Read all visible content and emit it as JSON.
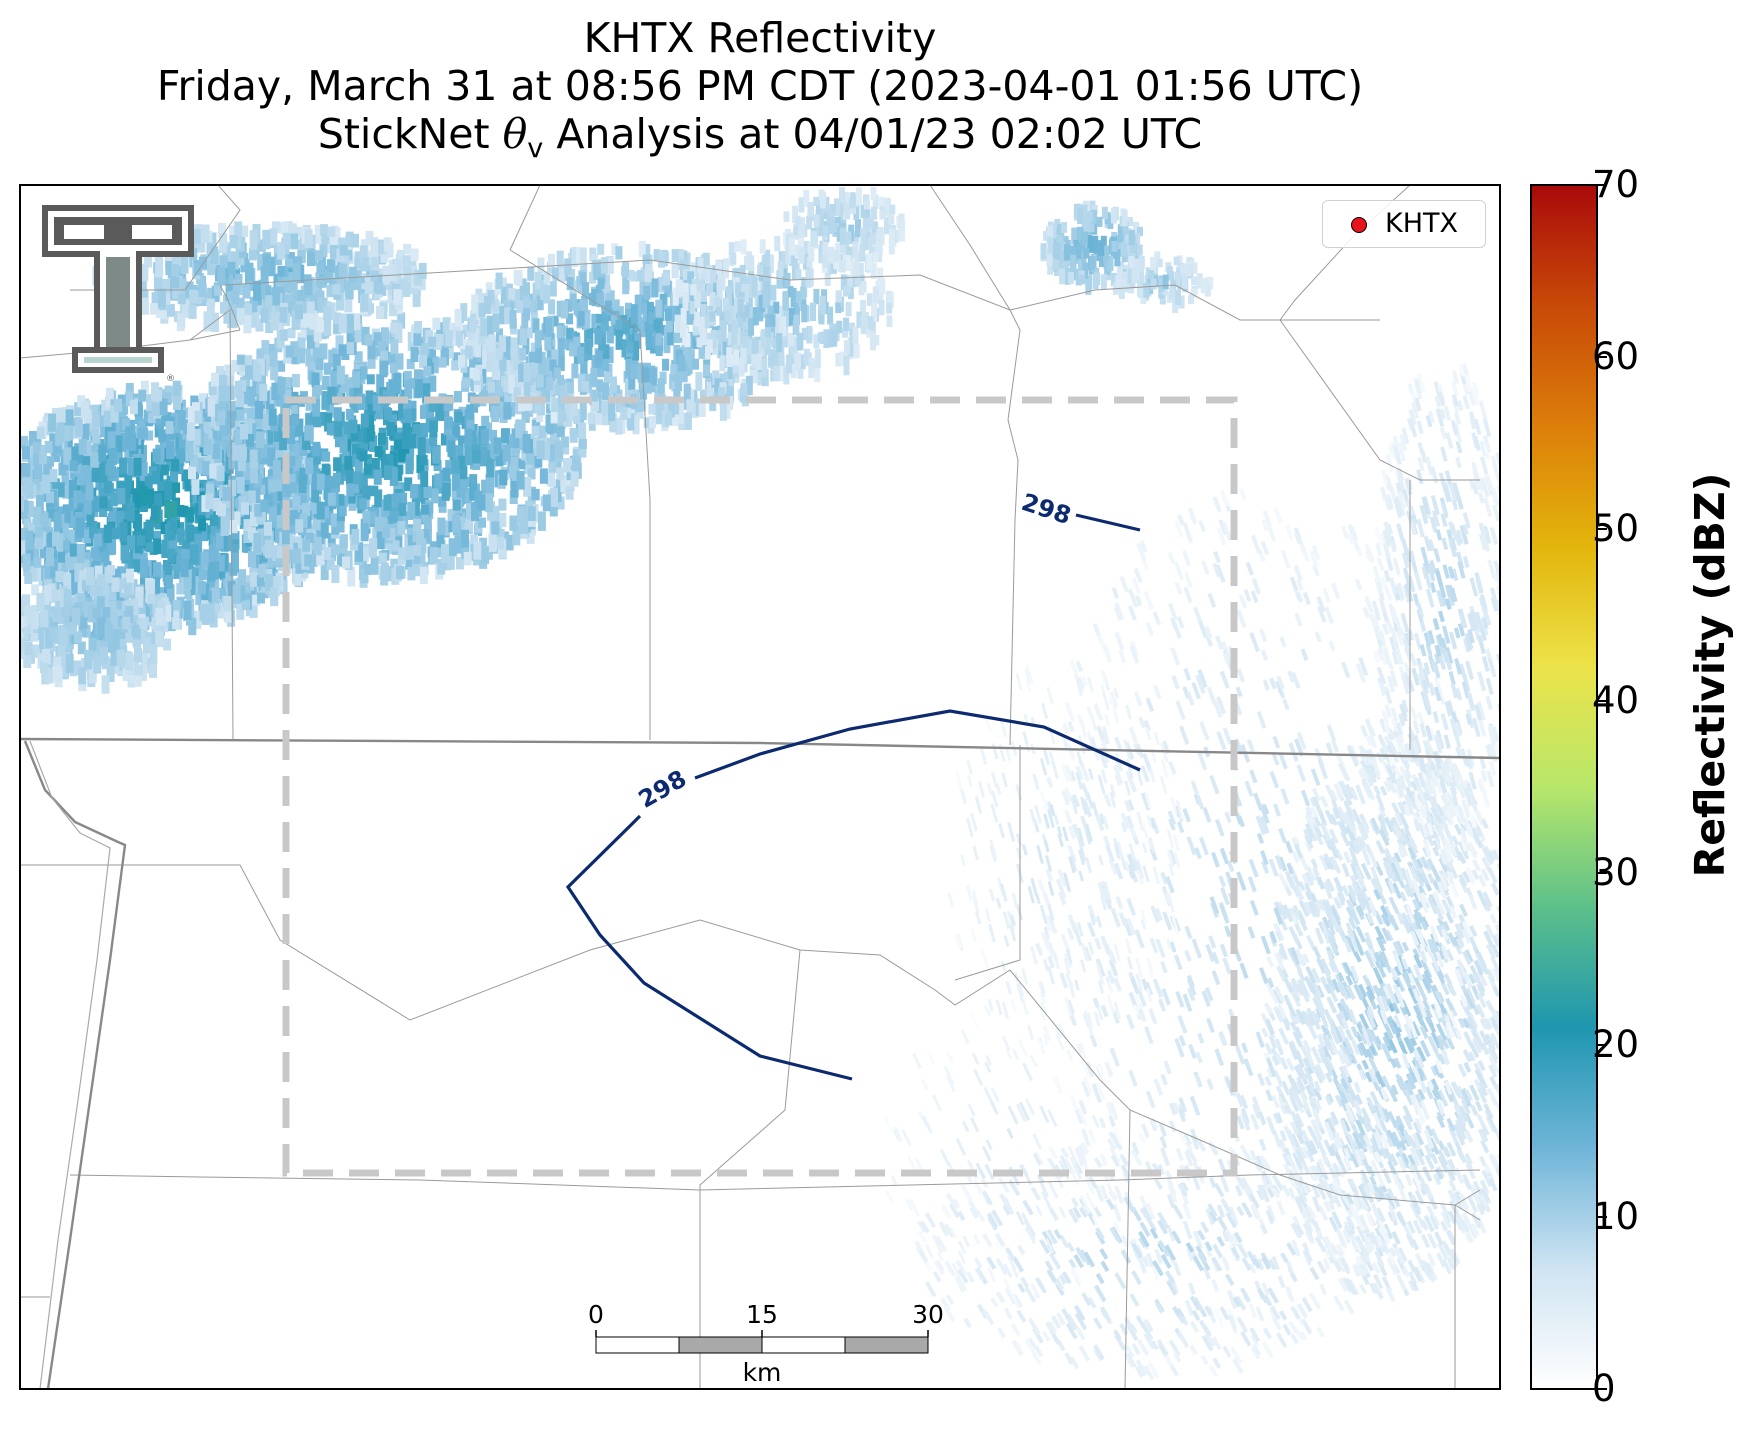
{
  "title": {
    "line1": "KHTX Reflectivity",
    "line2": "Friday, March 31 at 08:56 PM CDT (2023-04-01 01:56 UTC)",
    "line3_prefix": "StickNet ",
    "theta": "θ",
    "theta_sub": "v",
    "line3_suffix": " Analysis at 04/01/23 02:02 UTC"
  },
  "legend": {
    "label": "KHTX",
    "marker_color": "#e8141c"
  },
  "colorbar": {
    "title": "Reflectivity (dBZ)",
    "min": 0,
    "max": 70,
    "ticks": [
      "0",
      "10",
      "20",
      "30",
      "40",
      "50",
      "60",
      "70"
    ],
    "colors": [
      "#ffffff",
      "#cfe4f2",
      "#6fb5d8",
      "#1f96b0",
      "#5cc08a",
      "#b8e76a",
      "#ece34a",
      "#e3b50c",
      "#dc7e0a",
      "#c84a08",
      "#a90a0a"
    ]
  },
  "contours": [
    {
      "label": "298",
      "color": "#0c2a70"
    },
    {
      "label": "298",
      "color": "#0c2a70"
    }
  ],
  "scale_bar": {
    "labels": [
      "0",
      "15",
      "30"
    ],
    "unit": "km"
  },
  "logo": {
    "name": "Texas Tech Double T",
    "letters": "TT"
  },
  "colors": {
    "state_border": "#888888",
    "county_border": "#9a9a9a",
    "analysis_box": "#c8c8c8"
  }
}
